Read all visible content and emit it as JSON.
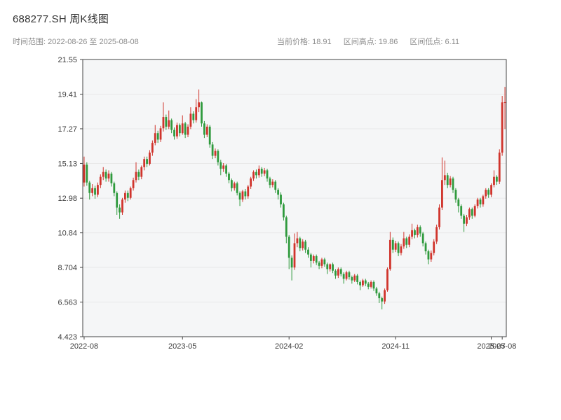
{
  "header": {
    "title": "688277.SH 周K线图",
    "time_range_label": "时间范围: 2022-08-26 至 2025-08-08",
    "stats": [
      "当前价格: 18.91",
      "区间高点: 19.86",
      "区间低点: 6.11"
    ]
  },
  "chart_data": {
    "type": "candlestick",
    "symbol": "688277.SH",
    "interval": "weekly",
    "title": "688277.SH 周K线图",
    "start_date": "2022-08-26",
    "end_date": "2025-08-08",
    "current_price": 18.91,
    "range_high": 19.86,
    "range_low": 6.11,
    "y_min": 4.423,
    "y_max": 21.55,
    "y_ticks": [
      "21.55",
      "19.41",
      "17.27",
      "15.13",
      "12.98",
      "10.84",
      "8.704",
      "6.563",
      "4.423"
    ],
    "x_ticks": [
      {
        "label": "2022-08",
        "index": 0
      },
      {
        "label": "2023-05",
        "index": 36
      },
      {
        "label": "2024-02",
        "index": 75
      },
      {
        "label": "2024-11",
        "index": 114
      },
      {
        "label": "2025-07",
        "index": 149
      },
      {
        "label": "2025-08",
        "index": 153
      }
    ],
    "colors": {
      "up": "#d0342c",
      "down": "#2f9a3d",
      "grid": "#e8e8e8",
      "plot_bg": "#f5f6f7",
      "axis": "#444444"
    },
    "candles": [
      [
        13.95,
        15.55,
        13.7,
        15.05
      ],
      [
        15.05,
        15.2,
        13.75,
        13.95
      ],
      [
        13.95,
        14.05,
        12.9,
        13.3
      ],
      [
        13.3,
        13.85,
        13.1,
        13.6
      ],
      [
        13.6,
        13.75,
        12.95,
        13.2
      ],
      [
        13.2,
        13.95,
        13.05,
        13.8
      ],
      [
        13.8,
        14.45,
        13.6,
        14.3
      ],
      [
        14.3,
        14.9,
        14.1,
        14.6
      ],
      [
        14.6,
        14.75,
        14.0,
        14.2
      ],
      [
        14.2,
        14.7,
        14.0,
        14.5
      ],
      [
        14.5,
        14.6,
        13.7,
        13.9
      ],
      [
        13.9,
        14.0,
        13.1,
        13.3
      ],
      [
        13.3,
        13.4,
        11.95,
        12.4
      ],
      [
        12.4,
        12.6,
        11.7,
        12.1
      ],
      [
        12.1,
        13.0,
        11.95,
        12.9
      ],
      [
        12.9,
        13.45,
        12.7,
        13.3
      ],
      [
        13.3,
        13.45,
        12.8,
        13.0
      ],
      [
        13.0,
        13.7,
        12.9,
        13.6
      ],
      [
        13.6,
        14.25,
        13.45,
        14.1
      ],
      [
        14.1,
        15.2,
        13.95,
        14.6
      ],
      [
        14.6,
        14.75,
        14.1,
        14.3
      ],
      [
        14.3,
        15.0,
        14.15,
        14.9
      ],
      [
        14.9,
        15.55,
        14.7,
        15.4
      ],
      [
        15.4,
        15.55,
        14.9,
        15.1
      ],
      [
        15.1,
        15.95,
        15.0,
        15.8
      ],
      [
        15.8,
        16.55,
        15.6,
        16.4
      ],
      [
        16.4,
        17.5,
        16.25,
        17.0
      ],
      [
        17.0,
        17.15,
        16.4,
        16.6
      ],
      [
        16.6,
        17.45,
        16.45,
        17.3
      ],
      [
        17.3,
        18.9,
        17.1,
        18.0
      ],
      [
        18.0,
        18.15,
        17.2,
        17.4
      ],
      [
        17.4,
        18.4,
        17.25,
        17.8
      ],
      [
        17.8,
        17.9,
        17.0,
        17.2
      ],
      [
        17.2,
        17.35,
        16.6,
        16.8
      ],
      [
        16.8,
        17.65,
        16.65,
        17.5
      ],
      [
        17.5,
        17.6,
        16.8,
        17.0
      ],
      [
        17.0,
        18.1,
        16.9,
        17.6
      ],
      [
        17.6,
        17.7,
        16.7,
        16.9
      ],
      [
        16.9,
        17.55,
        16.75,
        17.4
      ],
      [
        17.4,
        18.6,
        17.25,
        18.2
      ],
      [
        18.2,
        18.35,
        17.6,
        17.8
      ],
      [
        17.8,
        19.1,
        17.65,
        18.6
      ],
      [
        18.6,
        19.7,
        18.3,
        18.9
      ],
      [
        18.9,
        18.95,
        17.4,
        17.6
      ],
      [
        17.6,
        17.75,
        16.7,
        16.9
      ],
      [
        16.9,
        17.55,
        16.75,
        17.4
      ],
      [
        17.4,
        17.5,
        16.1,
        16.3
      ],
      [
        16.3,
        16.45,
        15.4,
        15.6
      ],
      [
        15.6,
        16.05,
        15.45,
        15.9
      ],
      [
        15.9,
        16.0,
        15.0,
        15.2
      ],
      [
        15.2,
        15.35,
        14.4,
        14.8
      ],
      [
        14.8,
        15.15,
        14.6,
        15.0
      ],
      [
        15.0,
        15.1,
        14.3,
        14.5
      ],
      [
        14.5,
        14.6,
        13.9,
        14.1
      ],
      [
        14.1,
        14.2,
        13.4,
        13.6
      ],
      [
        13.6,
        14.0,
        13.45,
        13.9
      ],
      [
        13.9,
        14.0,
        13.15,
        13.3
      ],
      [
        13.3,
        13.4,
        12.5,
        12.9
      ],
      [
        12.9,
        13.5,
        12.75,
        13.4
      ],
      [
        13.4,
        13.55,
        12.9,
        13.1
      ],
      [
        13.1,
        13.8,
        12.95,
        13.7
      ],
      [
        13.7,
        14.3,
        13.55,
        14.2
      ],
      [
        14.2,
        14.7,
        14.05,
        14.6
      ],
      [
        14.6,
        14.75,
        14.2,
        14.4
      ],
      [
        14.4,
        15.0,
        14.25,
        14.8
      ],
      [
        14.8,
        14.9,
        14.3,
        14.5
      ],
      [
        14.5,
        14.85,
        14.35,
        14.7
      ],
      [
        14.7,
        14.8,
        14.0,
        14.2
      ],
      [
        14.2,
        14.3,
        13.6,
        13.8
      ],
      [
        13.8,
        14.15,
        13.65,
        14.0
      ],
      [
        14.0,
        14.1,
        13.3,
        13.5
      ],
      [
        13.5,
        13.6,
        12.9,
        13.2
      ],
      [
        13.2,
        13.35,
        12.4,
        12.6
      ],
      [
        12.6,
        12.7,
        11.6,
        11.8
      ],
      [
        11.8,
        11.9,
        10.2,
        10.6
      ],
      [
        10.6,
        10.7,
        8.6,
        9.3
      ],
      [
        9.3,
        9.45,
        7.9,
        8.7
      ],
      [
        8.7,
        10.8,
        8.55,
        10.2
      ],
      [
        10.2,
        10.9,
        9.95,
        10.5
      ],
      [
        10.5,
        10.6,
        9.7,
        9.9
      ],
      [
        9.9,
        10.45,
        9.75,
        10.3
      ],
      [
        10.3,
        10.4,
        9.6,
        9.8
      ],
      [
        9.8,
        9.95,
        9.3,
        9.5
      ],
      [
        9.5,
        9.6,
        8.7,
        9.1
      ],
      [
        9.1,
        9.5,
        8.95,
        9.4
      ],
      [
        9.4,
        9.5,
        8.85,
        9.0
      ],
      [
        9.0,
        9.1,
        8.6,
        8.8
      ],
      [
        8.8,
        9.3,
        8.65,
        9.2
      ],
      [
        9.2,
        9.3,
        8.75,
        8.9
      ],
      [
        8.9,
        9.0,
        8.3,
        8.6
      ],
      [
        8.6,
        8.95,
        8.45,
        8.9
      ],
      [
        8.9,
        9.0,
        8.35,
        8.5
      ],
      [
        8.5,
        8.6,
        8.0,
        8.2
      ],
      [
        8.2,
        8.7,
        8.05,
        8.6
      ],
      [
        8.6,
        8.7,
        8.15,
        8.3
      ],
      [
        8.3,
        8.4,
        7.7,
        8.0
      ],
      [
        8.0,
        8.5,
        7.9,
        8.4
      ],
      [
        8.4,
        8.5,
        7.95,
        8.1
      ],
      [
        8.1,
        8.2,
        7.7,
        7.9
      ],
      [
        7.9,
        8.3,
        7.8,
        8.2
      ],
      [
        8.2,
        8.3,
        7.65,
        7.8
      ],
      [
        7.8,
        7.9,
        7.3,
        7.6
      ],
      [
        7.6,
        8.0,
        7.5,
        7.9
      ],
      [
        7.9,
        8.0,
        7.55,
        7.7
      ],
      [
        7.7,
        7.8,
        7.35,
        7.5
      ],
      [
        7.5,
        7.9,
        7.4,
        7.8
      ],
      [
        7.8,
        7.9,
        7.25,
        7.4
      ],
      [
        7.4,
        7.5,
        6.95,
        7.1
      ],
      [
        7.1,
        7.2,
        6.5,
        6.8
      ],
      [
        6.8,
        6.9,
        6.11,
        6.6
      ],
      [
        6.6,
        7.4,
        6.45,
        7.3
      ],
      [
        7.3,
        8.7,
        7.2,
        8.6
      ],
      [
        8.6,
        10.9,
        8.5,
        10.4
      ],
      [
        10.4,
        10.55,
        9.6,
        9.8
      ],
      [
        9.8,
        10.35,
        9.65,
        10.2
      ],
      [
        10.2,
        10.3,
        9.4,
        9.6
      ],
      [
        9.6,
        10.15,
        9.45,
        10.0
      ],
      [
        10.0,
        10.9,
        9.85,
        10.5
      ],
      [
        10.5,
        10.6,
        9.9,
        10.1
      ],
      [
        10.1,
        10.75,
        9.95,
        10.6
      ],
      [
        10.6,
        11.4,
        10.45,
        11.0
      ],
      [
        11.0,
        11.1,
        10.5,
        10.7
      ],
      [
        10.7,
        11.35,
        10.55,
        11.2
      ],
      [
        11.2,
        11.3,
        10.6,
        10.8
      ],
      [
        10.8,
        10.9,
        10.0,
        10.2
      ],
      [
        10.2,
        10.3,
        9.5,
        9.7
      ],
      [
        9.7,
        9.8,
        8.9,
        9.2
      ],
      [
        9.2,
        9.75,
        9.05,
        9.6
      ],
      [
        9.6,
        10.45,
        9.45,
        10.3
      ],
      [
        10.3,
        11.35,
        10.15,
        11.2
      ],
      [
        11.2,
        12.6,
        11.05,
        12.4
      ],
      [
        12.4,
        15.5,
        12.25,
        14.1
      ],
      [
        14.1,
        15.3,
        13.8,
        14.4
      ],
      [
        14.4,
        14.55,
        13.6,
        13.8
      ],
      [
        13.8,
        14.35,
        13.65,
        14.2
      ],
      [
        14.2,
        14.3,
        13.3,
        13.5
      ],
      [
        13.5,
        13.6,
        12.7,
        12.9
      ],
      [
        12.9,
        13.0,
        12.1,
        12.5
      ],
      [
        12.5,
        12.6,
        11.7,
        11.9
      ],
      [
        11.9,
        12.0,
        10.9,
        11.4
      ],
      [
        11.4,
        11.95,
        11.25,
        11.8
      ],
      [
        11.8,
        12.4,
        11.65,
        12.3
      ],
      [
        12.3,
        12.4,
        11.7,
        11.9
      ],
      [
        11.9,
        12.6,
        11.8,
        12.5
      ],
      [
        12.5,
        13.0,
        12.35,
        12.9
      ],
      [
        12.9,
        13.0,
        12.4,
        12.6
      ],
      [
        12.6,
        13.2,
        12.45,
        13.1
      ],
      [
        13.1,
        13.6,
        12.95,
        13.5
      ],
      [
        13.5,
        13.6,
        13.0,
        13.2
      ],
      [
        13.2,
        13.9,
        13.05,
        13.8
      ],
      [
        13.8,
        14.7,
        13.65,
        14.3
      ],
      [
        14.3,
        14.4,
        13.8,
        14.0
      ],
      [
        14.0,
        16.0,
        13.85,
        15.8
      ],
      [
        15.8,
        19.3,
        15.6,
        18.9
      ],
      [
        18.9,
        19.86,
        17.25,
        18.91
      ]
    ]
  }
}
